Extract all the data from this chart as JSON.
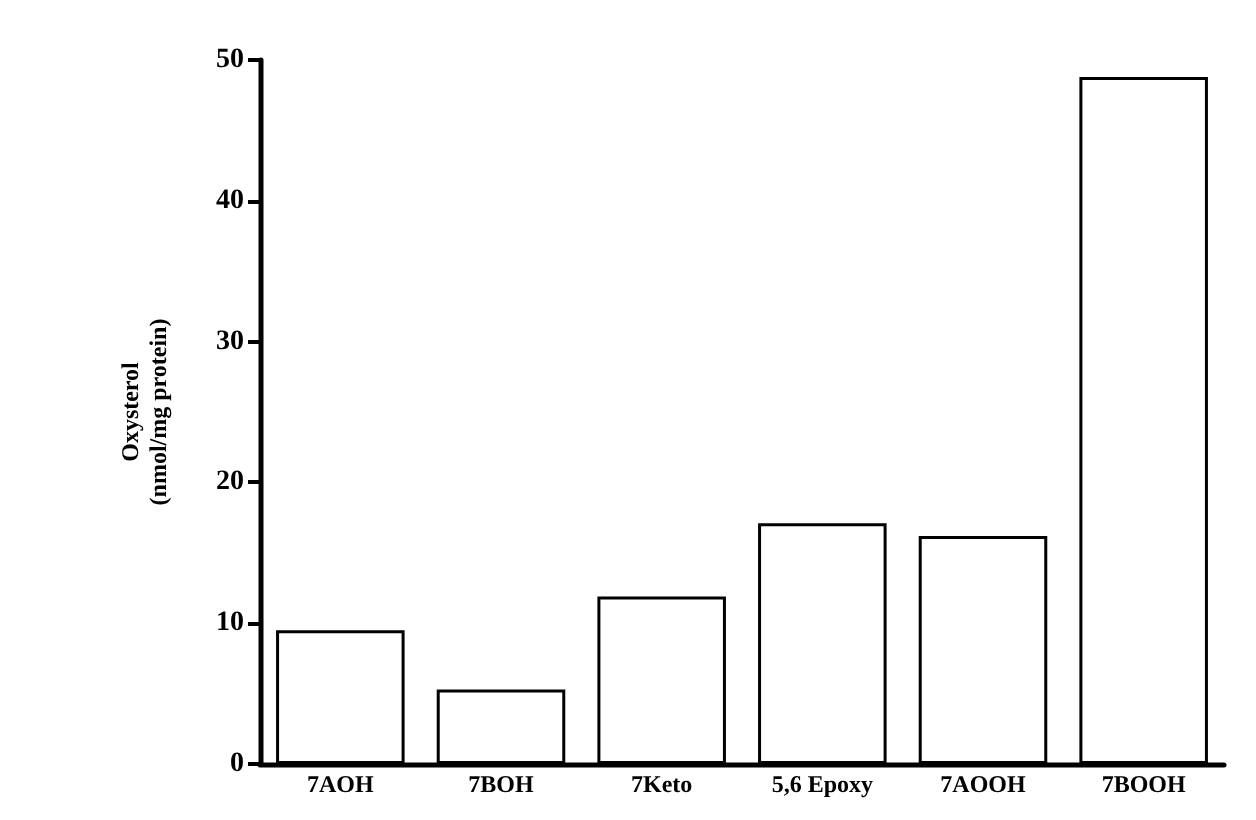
{
  "chart_data": {
    "type": "bar",
    "ylabel": "Oxysterol\n(nmol/mg protein)",
    "categories": [
      "7AOH",
      "7BOH",
      "7Keto",
      "5,6 Epoxy",
      "7AOOH",
      "7BOOH"
    ],
    "values": [
      9.5,
      5.3,
      11.9,
      17.1,
      16.2,
      48.8
    ],
    "color": "#ffffff",
    "ylim": [
      0,
      50
    ],
    "yticks": [
      0,
      10,
      20,
      30,
      40,
      50
    ],
    "grid": false
  }
}
